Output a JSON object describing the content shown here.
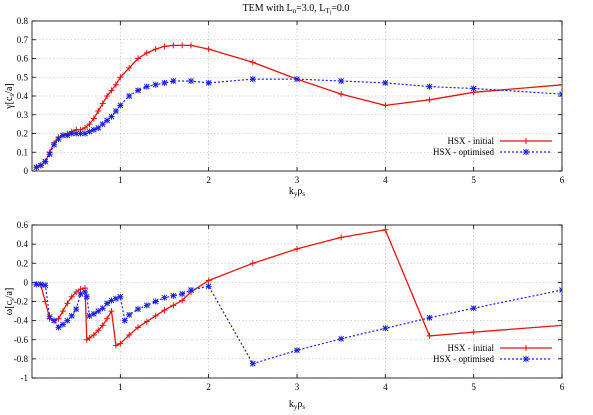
{
  "title_main": "TEM with L",
  "title_sub_n": "n",
  "title_mid": "=3.0, L",
  "title_sub_t": "T",
  "title_sub_i": "i",
  "title_end": "=0.0",
  "colors": {
    "initial": "#e8140f",
    "optimised": "#1a21e6",
    "grid": "#b8b8b8"
  },
  "x_label": {
    "k": "k",
    "y": "y",
    "rho": "ρ",
    "s": "s"
  },
  "chart_data": [
    {
      "type": "line",
      "ylabel": {
        "pre": "γ[c",
        "sub": "s",
        "post": "/a]"
      },
      "xlim": [
        0,
        6
      ],
      "ylim": [
        0,
        0.8
      ],
      "xticks": [
        "1",
        "2",
        "3",
        "4",
        "5",
        "6"
      ],
      "yticks": [
        "0",
        "0.1",
        "0.2",
        "0.3",
        "0.4",
        "0.5",
        "0.6",
        "0.7",
        "0.8"
      ],
      "ytick_values": [
        0,
        0.1,
        0.2,
        0.3,
        0.4,
        0.5,
        0.6,
        0.7,
        0.8
      ],
      "legend_position": "bottom-right",
      "series": [
        {
          "name": "HSX - initial",
          "x": [
            0.05,
            0.1,
            0.15,
            0.2,
            0.25,
            0.3,
            0.35,
            0.4,
            0.45,
            0.5,
            0.55,
            0.6,
            0.65,
            0.7,
            0.75,
            0.8,
            0.85,
            0.9,
            0.95,
            1.0,
            1.1,
            1.2,
            1.3,
            1.4,
            1.5,
            1.6,
            1.7,
            1.8,
            2.0,
            2.5,
            3.0,
            3.5,
            4.0,
            4.5,
            5.0,
            6.0
          ],
          "values": [
            0.02,
            0.03,
            0.05,
            0.1,
            0.15,
            0.18,
            0.19,
            0.2,
            0.21,
            0.22,
            0.22,
            0.23,
            0.25,
            0.28,
            0.32,
            0.36,
            0.4,
            0.43,
            0.46,
            0.5,
            0.55,
            0.6,
            0.63,
            0.65,
            0.665,
            0.67,
            0.67,
            0.67,
            0.65,
            0.58,
            0.49,
            0.41,
            0.35,
            0.38,
            0.42,
            0.46
          ]
        },
        {
          "name": "HSX - optimised",
          "x": [
            0.05,
            0.1,
            0.15,
            0.2,
            0.25,
            0.3,
            0.35,
            0.4,
            0.45,
            0.5,
            0.55,
            0.6,
            0.65,
            0.7,
            0.75,
            0.8,
            0.85,
            0.9,
            0.95,
            1.0,
            1.1,
            1.2,
            1.3,
            1.4,
            1.5,
            1.6,
            1.8,
            2.0,
            2.5,
            3.0,
            3.5,
            4.0,
            4.5,
            5.0,
            6.0
          ],
          "values": [
            0.02,
            0.03,
            0.05,
            0.09,
            0.14,
            0.17,
            0.19,
            0.19,
            0.2,
            0.2,
            0.2,
            0.2,
            0.21,
            0.22,
            0.23,
            0.25,
            0.27,
            0.29,
            0.32,
            0.35,
            0.4,
            0.43,
            0.45,
            0.46,
            0.47,
            0.48,
            0.48,
            0.47,
            0.49,
            0.49,
            0.48,
            0.47,
            0.45,
            0.44,
            0.41
          ]
        }
      ]
    },
    {
      "type": "line",
      "ylabel": {
        "pre": "ω[c",
        "sub": "s",
        "post": "/a]"
      },
      "xlim": [
        0,
        6
      ],
      "ylim": [
        -1,
        0.6
      ],
      "xticks": [
        "1",
        "2",
        "3",
        "4",
        "5",
        "6"
      ],
      "yticks": [
        "-1",
        "-0.8",
        "-0.6",
        "-0.4",
        "-0.2",
        "0",
        "0.2",
        "0.4",
        "0.6"
      ],
      "ytick_values": [
        -1,
        -0.8,
        -0.6,
        -0.4,
        -0.2,
        0,
        0.2,
        0.4,
        0.6
      ],
      "legend_position": "bottom-right",
      "series": [
        {
          "name": "HSX - initial",
          "x": [
            0.05,
            0.1,
            0.15,
            0.2,
            0.25,
            0.3,
            0.35,
            0.4,
            0.45,
            0.5,
            0.55,
            0.6,
            0.62,
            0.65,
            0.7,
            0.75,
            0.8,
            0.85,
            0.9,
            0.95,
            1.0,
            1.1,
            1.2,
            1.3,
            1.4,
            1.5,
            1.6,
            1.7,
            1.8,
            2.0,
            2.5,
            3.0,
            3.5,
            4.0,
            4.5,
            5.0,
            6.0
          ],
          "values": [
            -0.02,
            -0.03,
            -0.2,
            -0.38,
            -0.4,
            -0.38,
            -0.3,
            -0.22,
            -0.15,
            -0.1,
            -0.07,
            -0.06,
            -0.6,
            -0.58,
            -0.55,
            -0.5,
            -0.45,
            -0.38,
            -0.3,
            -0.66,
            -0.64,
            -0.55,
            -0.47,
            -0.41,
            -0.35,
            -0.29,
            -0.24,
            -0.19,
            -0.1,
            0.02,
            0.2,
            0.35,
            0.47,
            0.55,
            -0.56,
            -0.52,
            -0.45
          ]
        },
        {
          "name": "HSX - optimised",
          "x": [
            0.05,
            0.1,
            0.15,
            0.2,
            0.25,
            0.3,
            0.35,
            0.4,
            0.45,
            0.5,
            0.55,
            0.6,
            0.62,
            0.65,
            0.7,
            0.75,
            0.8,
            0.85,
            0.9,
            0.95,
            1.0,
            1.05,
            1.1,
            1.2,
            1.3,
            1.4,
            1.5,
            1.6,
            1.7,
            1.8,
            2.0,
            2.5,
            3.0,
            3.5,
            4.0,
            4.5,
            5.0,
            6.0
          ],
          "values": [
            -0.02,
            -0.02,
            -0.03,
            -0.36,
            -0.4,
            -0.47,
            -0.44,
            -0.4,
            -0.35,
            -0.28,
            -0.12,
            -0.1,
            -0.15,
            -0.35,
            -0.33,
            -0.3,
            -0.27,
            -0.22,
            -0.19,
            -0.17,
            -0.15,
            -0.4,
            -0.34,
            -0.28,
            -0.24,
            -0.2,
            -0.16,
            -0.14,
            -0.12,
            -0.08,
            -0.04,
            -0.85,
            -0.71,
            -0.59,
            -0.48,
            -0.37,
            -0.27,
            -0.08
          ]
        }
      ]
    }
  ]
}
